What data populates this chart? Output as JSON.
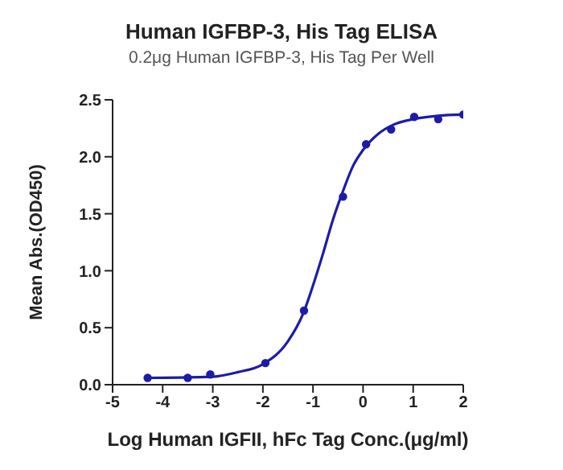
{
  "chart_data": {
    "type": "scatter",
    "title": "Human IGFBP-3, His Tag ELISA",
    "subtitle": "0.2μg Human IGFBP-3, His Tag Per Well",
    "xlabel": "Log Human IGFII, hFc Tag Conc.(μg/ml)",
    "ylabel": "Mean Abs.(OD450)",
    "xlim": [
      -5,
      2
    ],
    "xticks": [
      -5,
      -4,
      -3,
      -2,
      -1,
      0,
      1,
      2
    ],
    "ylim": [
      0,
      2.5
    ],
    "yticks": [
      {
        "value": 0,
        "label": "0.0"
      },
      {
        "value": 0.5,
        "label": "0.5"
      },
      {
        "value": 1,
        "label": "1.0"
      },
      {
        "value": 1.5,
        "label": "1.5"
      },
      {
        "value": 2,
        "label": "2.0"
      },
      {
        "value": 2.5,
        "label": "2.5"
      }
    ],
    "grid": false,
    "legend": false,
    "series": [
      {
        "marker": "circle",
        "color": "#1c1ca8",
        "x": [
          -4.3,
          -3.5,
          -3.05,
          -1.95,
          -1.18,
          -0.4,
          0.06,
          0.56,
          1.02,
          1.5,
          2
        ],
        "values": [
          0.06,
          0.06,
          0.09,
          0.19,
          0.65,
          1.65,
          2.11,
          2.24,
          2.35,
          2.33,
          2.37
        ]
      },
      {
        "type": "line",
        "marker": "none",
        "line_style": "solid",
        "color": "#1c1ca8",
        "x": [
          -4.3,
          -3,
          -2.5,
          -2,
          -1.5,
          -1.2,
          -1,
          -0.8,
          -0.6,
          -0.4,
          -0.2,
          0,
          0.3,
          0.6,
          1,
          1.5,
          2
        ],
        "values": [
          0.06,
          0.07,
          0.11,
          0.18,
          0.38,
          0.62,
          0.87,
          1.15,
          1.45,
          1.7,
          1.92,
          2.06,
          2.2,
          2.28,
          2.33,
          2.36,
          2.37
        ]
      }
    ]
  }
}
